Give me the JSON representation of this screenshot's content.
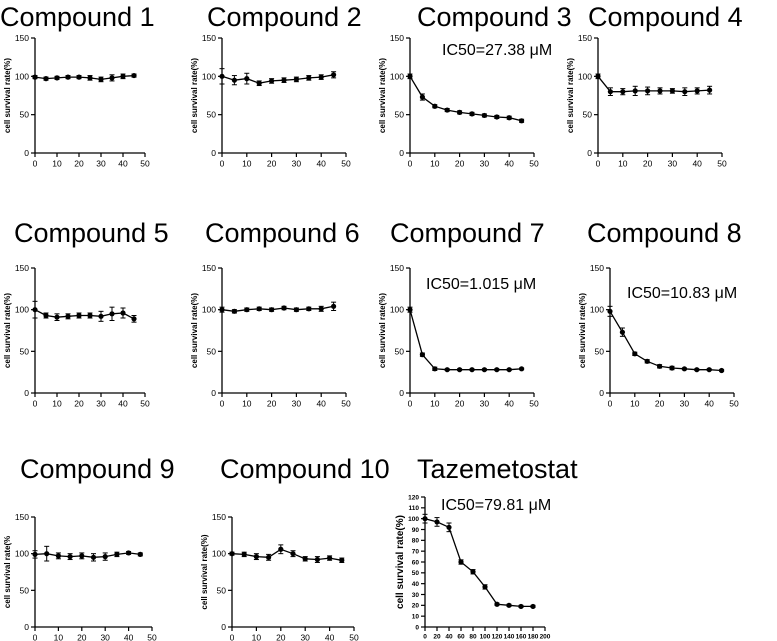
{
  "chart_data": [
    {
      "type": "line",
      "title": "Compound 1",
      "annotation": "",
      "xlabel": "",
      "ylabel": "cell survival rate(%)",
      "xlim": [
        0,
        50
      ],
      "ylim": [
        0,
        150
      ],
      "xticks": [
        0,
        10,
        20,
        30,
        40,
        50
      ],
      "yticks": [
        0,
        50,
        100,
        150
      ],
      "x": [
        0,
        5,
        10,
        15,
        20,
        25,
        30,
        35,
        40,
        45
      ],
      "series": [
        {
          "values": [
            99,
            97,
            98,
            99,
            99,
            98,
            96,
            98,
            100,
            101
          ],
          "errors": [
            2,
            2,
            2,
            2,
            2,
            3,
            3,
            4,
            3,
            2
          ]
        }
      ]
    },
    {
      "type": "line",
      "title": "Compound 2",
      "annotation": "",
      "xlabel": "",
      "ylabel": "cell survival rate(%)",
      "xlim": [
        0,
        50
      ],
      "ylim": [
        0,
        150
      ],
      "xticks": [
        0,
        10,
        20,
        30,
        40,
        50
      ],
      "yticks": [
        0,
        50,
        100,
        150
      ],
      "x": [
        0,
        5,
        10,
        15,
        20,
        25,
        30,
        35,
        40,
        45
      ],
      "series": [
        {
          "values": [
            100,
            95,
            97,
            91,
            94,
            95,
            96,
            98,
            99,
            102
          ],
          "errors": [
            10,
            6,
            7,
            3,
            3,
            3,
            3,
            3,
            3,
            4
          ]
        }
      ]
    },
    {
      "type": "line",
      "title": "Compound 3",
      "annotation": "IC50=27.38 μM",
      "xlabel": "",
      "ylabel": "cell survival rate(%)",
      "xlim": [
        0,
        50
      ],
      "ylim": [
        0,
        150
      ],
      "xticks": [
        0,
        10,
        20,
        30,
        40,
        50
      ],
      "yticks": [
        0,
        50,
        100,
        150
      ],
      "x": [
        0,
        5,
        10,
        15,
        20,
        25,
        30,
        35,
        40,
        45
      ],
      "series": [
        {
          "values": [
            100,
            73,
            61,
            56,
            53,
            51,
            49,
            47,
            46,
            42
          ],
          "errors": [
            3,
            4,
            2,
            2,
            2,
            2,
            2,
            2,
            2,
            2
          ]
        }
      ]
    },
    {
      "type": "line",
      "title": "Compound 4",
      "annotation": "",
      "xlabel": "",
      "ylabel": "cell survival rate(%)",
      "xlim": [
        0,
        50
      ],
      "ylim": [
        0,
        150
      ],
      "xticks": [
        0,
        10,
        20,
        30,
        40,
        50
      ],
      "yticks": [
        0,
        50,
        100,
        150
      ],
      "x": [
        0,
        5,
        10,
        15,
        20,
        25,
        30,
        35,
        40,
        45
      ],
      "series": [
        {
          "values": [
            100,
            80,
            80,
            81,
            81,
            81,
            81,
            80,
            81,
            82
          ],
          "errors": [
            3,
            5,
            4,
            6,
            5,
            4,
            3,
            5,
            4,
            5
          ]
        }
      ]
    },
    {
      "type": "line",
      "title": "Compound 5",
      "annotation": "",
      "xlabel": "",
      "ylabel": "cell survival rate(%)",
      "xlim": [
        0,
        50
      ],
      "ylim": [
        0,
        150
      ],
      "xticks": [
        0,
        10,
        20,
        30,
        40,
        50
      ],
      "yticks": [
        0,
        50,
        100,
        150
      ],
      "x": [
        0,
        5,
        10,
        15,
        20,
        25,
        30,
        35,
        40,
        45
      ],
      "series": [
        {
          "values": [
            100,
            93,
            91,
            92,
            93,
            93,
            92,
            95,
            96,
            89
          ],
          "errors": [
            10,
            3,
            4,
            3,
            3,
            3,
            6,
            8,
            6,
            4
          ]
        }
      ]
    },
    {
      "type": "line",
      "title": "Compound 6",
      "annotation": "",
      "xlabel": "",
      "ylabel": "cell survival rate(%)",
      "xlim": [
        0,
        50
      ],
      "ylim": [
        0,
        150
      ],
      "xticks": [
        0,
        10,
        20,
        30,
        40,
        50
      ],
      "yticks": [
        0,
        50,
        100,
        150
      ],
      "x": [
        0,
        5,
        10,
        15,
        20,
        25,
        30,
        35,
        40,
        45
      ],
      "series": [
        {
          "values": [
            100,
            98,
            100,
            101,
            100,
            102,
            100,
            101,
            101,
            104
          ],
          "errors": [
            3,
            2,
            2,
            2,
            2,
            2,
            2,
            2,
            3,
            5
          ]
        }
      ]
    },
    {
      "type": "line",
      "title": "Compound 7",
      "annotation": "IC50=1.015 μM",
      "xlabel": "",
      "ylabel": "cell survival rate(%)",
      "xlim": [
        0,
        50
      ],
      "ylim": [
        0,
        150
      ],
      "xticks": [
        0,
        10,
        20,
        30,
        40,
        50
      ],
      "yticks": [
        0,
        50,
        100,
        150
      ],
      "x": [
        0,
        5,
        10,
        15,
        20,
        25,
        30,
        35,
        40,
        45
      ],
      "series": [
        {
          "values": [
            100,
            46,
            29,
            28,
            28,
            28,
            28,
            28,
            28,
            29
          ],
          "errors": [
            3,
            2,
            2,
            1,
            1,
            1,
            1,
            1,
            1,
            1
          ]
        }
      ]
    },
    {
      "type": "line",
      "title": "Compound 8",
      "annotation": "IC50=10.83 μM",
      "xlabel": "",
      "ylabel": "cell survival rate(%)",
      "xlim": [
        0,
        50
      ],
      "ylim": [
        0,
        150
      ],
      "xticks": [
        0,
        10,
        20,
        30,
        40,
        50
      ],
      "yticks": [
        0,
        50,
        100,
        150
      ],
      "x": [
        0,
        5,
        10,
        15,
        20,
        25,
        30,
        35,
        40,
        45
      ],
      "series": [
        {
          "values": [
            98,
            73,
            47,
            38,
            32,
            30,
            29,
            28,
            28,
            27
          ],
          "errors": [
            6,
            5,
            2,
            2,
            2,
            2,
            1,
            1,
            1,
            1
          ]
        }
      ]
    },
    {
      "type": "line",
      "title": "Compound 9",
      "annotation": "",
      "xlabel": "",
      "ylabel": "cell survival rate(%",
      "xlim": [
        0,
        50
      ],
      "ylim": [
        0,
        150
      ],
      "xticks": [
        0,
        10,
        20,
        30,
        40,
        50
      ],
      "yticks": [
        0,
        50,
        100,
        150
      ],
      "x": [
        0,
        5,
        10,
        15,
        20,
        25,
        30,
        35,
        40,
        45
      ],
      "series": [
        {
          "values": [
            99,
            100,
            97,
            96,
            97,
            95,
            96,
            99,
            101,
            99
          ],
          "errors": [
            5,
            10,
            4,
            4,
            4,
            5,
            5,
            3,
            2,
            2
          ]
        }
      ]
    },
    {
      "type": "line",
      "title": "Compound 10",
      "annotation": "",
      "xlabel": "",
      "ylabel": "cell survival rate(%)",
      "xlim": [
        0,
        50
      ],
      "ylim": [
        0,
        150
      ],
      "xticks": [
        0,
        10,
        20,
        30,
        40,
        50
      ],
      "yticks": [
        0,
        50,
        100,
        150
      ],
      "x": [
        0,
        5,
        10,
        15,
        20,
        25,
        30,
        35,
        40,
        45
      ],
      "series": [
        {
          "values": [
            100,
            99,
            96,
            95,
            106,
            100,
            93,
            92,
            94,
            91
          ],
          "errors": [
            2,
            3,
            4,
            4,
            6,
            4,
            3,
            4,
            3,
            3
          ]
        }
      ]
    },
    {
      "type": "line",
      "title": "Tazemetostat",
      "annotation": "IC50=79.81 μM",
      "xlabel": "",
      "ylabel": "cell survival rate(%)",
      "xlim": [
        0,
        200
      ],
      "ylim": [
        0,
        120
      ],
      "xticks": [
        0,
        20,
        40,
        60,
        80,
        100,
        120,
        140,
        160,
        180,
        200
      ],
      "yticks": [
        0,
        10,
        20,
        30,
        40,
        50,
        60,
        70,
        80,
        90,
        100,
        110,
        120
      ],
      "x": [
        0,
        20,
        40,
        60,
        80,
        100,
        120,
        140,
        160,
        180
      ],
      "series": [
        {
          "values": [
            100,
            97,
            92,
            60,
            51,
            37,
            21,
            20,
            19,
            19
          ],
          "errors": [
            4,
            4,
            4,
            2,
            2,
            2,
            1,
            1,
            1,
            1
          ]
        }
      ]
    }
  ]
}
